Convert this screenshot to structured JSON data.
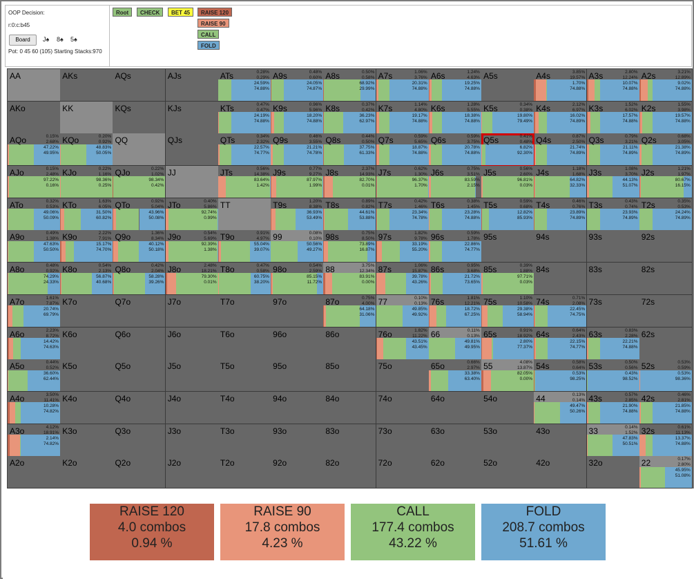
{
  "info": {
    "title": "OOP Decision:",
    "line": "r:0:c:b45",
    "board_button": "Board",
    "cards": [
      "J♠",
      "8♠",
      "5♠"
    ],
    "pot": "Pot: 0 45 60 (105) Starting Stacks:970"
  },
  "nav_buttons": [
    {
      "label": "Root",
      "color": "#93c47d"
    },
    {
      "label": "CHECK",
      "color": "#93c47d"
    },
    {
      "label": "BET 45",
      "color": "#ffff3c"
    },
    {
      "label": "RAISE 120",
      "color": "#c0664f"
    },
    {
      "label": "RAISE 90",
      "color": "#e8957a"
    },
    {
      "label": "CALL",
      "color": "#93c47d"
    },
    {
      "label": "FOLD",
      "color": "#6fa8d0"
    }
  ],
  "colors": {
    "raise120": "#c0664f",
    "raise90": "#e8957a",
    "call": "#93c47d",
    "fold": "#6fa8d0",
    "empty": "#676767",
    "pair_bg": "#8c8c8c",
    "summary_r120": "#c0664f",
    "summary_r90": "#e8957a",
    "summary_call": "#93c47d",
    "summary_fold": "#6fa8d0"
  },
  "selected": "Q5s",
  "matrix": [
    [
      {
        "h": "AA"
      },
      {
        "h": "AKs"
      },
      {
        "h": "AQs"
      },
      {
        "h": "AJs"
      },
      {
        "h": "ATs",
        "s": [
          "0.28%",
          "0.29%",
          "24.59%",
          "74.88%"
        ]
      },
      {
        "h": "A9s",
        "s": [
          "0.48%",
          "0.60%",
          "24.05%",
          "74.87%"
        ]
      },
      {
        "h": "A8s",
        "s": [
          "0.50%",
          "0.58%",
          "68.92%",
          "29.99%"
        ]
      },
      {
        "h": "A7s",
        "s": [
          "1.06%",
          "3.76%",
          "20.31%",
          "74.88%"
        ]
      },
      {
        "h": "A6s",
        "s": [
          "1.24%",
          "4.63%",
          "19.25%",
          "74.88%"
        ]
      },
      {
        "h": "A5s"
      },
      {
        "h": "A4s",
        "s": [
          "3.85%",
          "19.57%",
          "1.70%",
          "74.88%"
        ]
      },
      {
        "h": "A3s",
        "s": [
          "2.80%",
          "12.24%",
          "10.07%",
          "74.88%"
        ]
      },
      {
        "h": "A2s",
        "s": [
          "3.21%",
          "12.89%",
          "9.02%",
          "74.88%"
        ]
      }
    ],
    [
      {
        "h": "AKo"
      },
      {
        "h": "KK"
      },
      {
        "h": "KQs"
      },
      {
        "h": "KJs"
      },
      {
        "h": "KTs",
        "s": [
          "0.47%",
          "0.47%",
          "24.19%",
          "74.88%"
        ]
      },
      {
        "h": "K9s",
        "s": [
          "0.96%",
          "5.96%",
          "18.20%",
          "74.88%"
        ]
      },
      {
        "h": "K8s",
        "s": [
          "0.37%",
          "0.42%",
          "36.23%",
          "62.97%"
        ]
      },
      {
        "h": "K7s",
        "s": [
          "1.14%",
          "4.80%",
          "19.17%",
          "74.88%"
        ]
      },
      {
        "h": "K6s",
        "s": [
          "1.28%",
          "5.55%",
          "18.38%",
          "74.88%"
        ]
      },
      {
        "h": "K5s",
        "s": [
          "0.34%",
          "0.38%",
          "19.80%",
          "79.49%"
        ]
      },
      {
        "h": "K4s",
        "s": [
          "2.12%",
          "6.97%",
          "16.02%",
          "74.89%"
        ]
      },
      {
        "h": "K3s",
        "s": [
          "1.52%",
          "6.02%",
          "17.57%",
          "74.88%"
        ]
      },
      {
        "h": "K2s",
        "s": [
          "1.55%",
          "3.98%",
          "19.57%",
          "74.88%"
        ]
      }
    ],
    [
      {
        "h": "AQo",
        "s": [
          "0.15%",
          "2.68%",
          "47.22%",
          "49.95%"
        ]
      },
      {
        "h": "KQo",
        "s": [
          "0.20%",
          "0.92%",
          "48.83%",
          "50.05%"
        ]
      },
      {
        "h": "QQ"
      },
      {
        "h": "QJs"
      },
      {
        "h": "QTs",
        "s": [
          "0.34%",
          "2.32%",
          "22.57%",
          "74.77%"
        ]
      },
      {
        "h": "Q9s",
        "s": [
          "0.46%",
          "3.55%",
          "21.21%",
          "74.78%"
        ]
      },
      {
        "h": "Q8s",
        "s": [
          "0.44%",
          "0.50%",
          "37.75%",
          "61.33%"
        ]
      },
      {
        "h": "Q7s",
        "s": [
          "0.59%",
          "5.65%",
          "18.87%",
          "74.88%"
        ]
      },
      {
        "h": "Q6s",
        "s": [
          "0.59%",
          "3.75%",
          "20.78%",
          "74.88%"
        ]
      },
      {
        "h": "Q5s",
        "s": [
          "0.41%",
          "0.48%",
          "6.82%",
          "92.30%"
        ]
      },
      {
        "h": "Q4s",
        "s": [
          "0.87%",
          "2.50%",
          "21.74%",
          "74.89%"
        ]
      },
      {
        "h": "Q3s",
        "s": [
          "0.79%",
          "3.21%",
          "21.11%",
          "74.89%"
        ]
      },
      {
        "h": "Q2s",
        "s": [
          "0.68%",
          "3.05%",
          "21.38%",
          "74.89%"
        ]
      }
    ],
    [
      {
        "h": "AJo",
        "s": [
          "0.15%",
          "2.48%",
          "97.22%",
          "0.16%"
        ]
      },
      {
        "h": "KJo",
        "s": [
          "0.22%",
          "1.16%",
          "98.36%",
          "0.25%"
        ]
      },
      {
        "h": "QJo",
        "s": [
          "0.22%",
          "1.02%",
          "98.34%",
          "0.42%"
        ]
      },
      {
        "h": "JJ"
      },
      {
        "h": "JTs",
        "s": [
          "0.56%",
          "14.38%",
          "83.64%",
          "1.42%"
        ]
      },
      {
        "h": "J9s",
        "s": [
          "0.77%",
          "9.27%",
          "87.97%",
          "1.99%"
        ]
      },
      {
        "h": "J8s",
        "s": [
          "2.37%",
          "14.93%",
          "82.70%",
          "0.01%"
        ]
      },
      {
        "h": "J7s",
        "s": [
          "0.62%",
          "1.30%",
          "96.37%",
          "1.70%"
        ]
      },
      {
        "h": "J6s",
        "s": [
          "0.75%",
          "3.51%",
          "83.59%",
          "2.15%"
        ]
      },
      {
        "h": "J5s",
        "s": [
          "0.56%",
          "2.60%",
          "96.81%",
          "0.03%"
        ]
      },
      {
        "h": "J4s",
        "s": [
          "1.18%",
          "1.68%",
          "64.82%",
          "32.33%"
        ]
      },
      {
        "h": "J3s",
        "s": [
          "1.08%",
          "3.70%",
          "44.13%",
          "51.07%"
        ]
      },
      {
        "h": "J2s",
        "s": [
          "1.21%",
          "1.97%",
          "80.67%",
          "16.15%"
        ]
      }
    ],
    [
      {
        "h": "ATo",
        "s": [
          "0.32%",
          "0.53%",
          "49.06%",
          "50.09%"
        ]
      },
      {
        "h": "KTo",
        "s": [
          "1.63%",
          "6.05%",
          "31.50%",
          "60.82%"
        ]
      },
      {
        "h": "QTo",
        "s": [
          "0.92%",
          "5.04%",
          "43.96%",
          "50.08%"
        ]
      },
      {
        "h": "JTo",
        "s": [
          "0.40%",
          "5.86%",
          "92.74%",
          "0.99%"
        ]
      },
      {
        "h": "TT"
      },
      {
        "h": "T9s",
        "s": [
          "1.20%",
          "8.38%",
          "36.93%",
          "53.49%"
        ]
      },
      {
        "h": "T8s",
        "s": [
          "0.89%",
          "0.82%",
          "44.61%",
          "53.88%"
        ]
      },
      {
        "h": "T7s",
        "s": [
          "0.42%",
          "1.46%",
          "23.34%",
          "74.78%"
        ]
      },
      {
        "h": "T6s",
        "s": [
          "0.38%",
          "1.45%",
          "23.28%",
          "74.88%"
        ]
      },
      {
        "h": "T5s",
        "s": [
          "0.59%",
          "0.68%",
          "12.82%",
          "85.93%"
        ]
      },
      {
        "h": "T4s",
        "s": [
          "0.46%",
          "0.76%",
          "23.89%",
          "74.89%"
        ]
      },
      {
        "h": "T3s",
        "s": [
          "0.43%",
          "0.74%",
          "23.93%",
          "74.89%"
        ]
      },
      {
        "h": "T2s",
        "s": [
          "0.35%",
          "0.53%",
          "24.24%",
          "74.89%"
        ]
      }
    ],
    [
      {
        "h": "A9o",
        "s": [
          "0.49%",
          "1.38%",
          "47.63%",
          "50.50%"
        ]
      },
      {
        "h": "K9o",
        "s": [
          "2.22%",
          "7.91%",
          "15.17%",
          "74.70%"
        ]
      },
      {
        "h": "Q9o",
        "s": [
          "1.36%",
          "8.34%",
          "40.12%",
          "50.18%"
        ]
      },
      {
        "h": "J9o",
        "s": [
          "0.54%",
          "5.69%",
          "92.39%",
          "1.38%"
        ]
      },
      {
        "h": "T9o",
        "s": [
          "0.91%",
          "4.97%",
          "55.04%",
          "39.07%"
        ]
      },
      {
        "h": "99",
        "s": [
          "0.08%",
          "0.10%",
          "50.56%",
          "49.27%"
        ]
      },
      {
        "h": "98s",
        "s": [
          "0.75%",
          "8.50%",
          "73.89%",
          "16.87%"
        ]
      },
      {
        "h": "97s",
        "s": [
          "1.82%",
          "9.78%",
          "33.19%",
          "55.20%"
        ]
      },
      {
        "h": "96s",
        "s": [
          "0.59%",
          "1.78%",
          "22.86%",
          "74.77%"
        ]
      },
      {
        "h": "95s"
      },
      {
        "h": "94s"
      },
      {
        "h": "93s"
      },
      {
        "h": "92s"
      }
    ],
    [
      {
        "h": "A8o",
        "s": [
          "0.48%",
          "0.92%",
          "74.29%",
          "24.33%"
        ]
      },
      {
        "h": "K8o",
        "s": [
          "0.54%",
          "2.13%",
          "56.87%",
          "40.68%"
        ]
      },
      {
        "h": "Q8o",
        "s": [
          "0.42%",
          "2.04%",
          "58.28%",
          "39.26%"
        ]
      },
      {
        "h": "J8o",
        "s": [
          "2.48%",
          "18.21%",
          "79.30%",
          "0.01%"
        ]
      },
      {
        "h": "T8o",
        "s": [
          "0.47%",
          "0.58%",
          "60.75%",
          "38.20%"
        ]
      },
      {
        "h": "98o",
        "s": [
          "0.54%",
          "2.59%",
          "85.15%",
          "11.72%"
        ]
      },
      {
        "h": "88",
        "s": [
          "3.75%",
          "12.34%",
          "83.91%",
          "0.00%"
        ]
      },
      {
        "h": "87s",
        "s": [
          "1.06%",
          "15.87%",
          "39.78%",
          "43.26%"
        ]
      },
      {
        "h": "86s",
        "s": [
          "0.95%",
          "3.68%",
          "21.72%",
          "73.65%"
        ]
      },
      {
        "h": "85s",
        "s": [
          "0.39%",
          "1.88%",
          "97.71%",
          "0.03%"
        ]
      },
      {
        "h": "84s"
      },
      {
        "h": "83s"
      },
      {
        "h": "82s"
      }
    ],
    [
      {
        "h": "A7o",
        "s": [
          "1.61%",
          "7.87%",
          "20.74%",
          "69.79%"
        ]
      },
      {
        "h": "K7o"
      },
      {
        "h": "Q7o"
      },
      {
        "h": "J7o"
      },
      {
        "h": "T7o"
      },
      {
        "h": "97o"
      },
      {
        "h": "87o",
        "s": [
          "0.75%",
          "4.00%",
          "64.18%",
          "31.06%"
        ]
      },
      {
        "h": "77",
        "s": [
          "0.10%",
          "0.13%",
          "49.85%",
          "49.92%"
        ]
      },
      {
        "h": "76s",
        "s": [
          "1.81%",
          "12.21%",
          "18.72%",
          "67.25%"
        ]
      },
      {
        "h": "75s",
        "s": [
          "1.10%",
          "10.58%",
          "29.38%",
          "58.94%"
        ]
      },
      {
        "h": "74s",
        "s": [
          "0.71%",
          "2.08%",
          "22.45%",
          "74.75%"
        ]
      },
      {
        "h": "73s"
      },
      {
        "h": "72s"
      }
    ],
    [
      {
        "h": "A6o",
        "s": [
          "2.23%",
          "8.72%",
          "14.42%",
          "74.63%"
        ]
      },
      {
        "h": "K6o"
      },
      {
        "h": "Q6o"
      },
      {
        "h": "J6o"
      },
      {
        "h": "T6o"
      },
      {
        "h": "96o"
      },
      {
        "h": "86o"
      },
      {
        "h": "76o",
        "s": [
          "1.82%",
          "11.22%",
          "43.51%",
          "43.45%"
        ]
      },
      {
        "h": "66",
        "s": [
          "0.11%",
          "0.13%",
          "49.81%",
          "49.95%"
        ]
      },
      {
        "h": "65s",
        "s": [
          "0.91%",
          "18.92%",
          "2.80%",
          "77.37%"
        ]
      },
      {
        "h": "64s",
        "s": [
          "0.64%",
          "2.43%",
          "22.15%",
          "74.77%"
        ]
      },
      {
        "h": "63s",
        "s": [
          "0.83%",
          "2.28%",
          "22.21%",
          "74.88%"
        ]
      },
      {
        "h": "62s"
      }
    ],
    [
      {
        "h": "A5o",
        "s": [
          "0.44%",
          "0.52%",
          "36.60%",
          "62.44%"
        ]
      },
      {
        "h": "K5o"
      },
      {
        "h": "Q5o"
      },
      {
        "h": "J5o"
      },
      {
        "h": "T5o"
      },
      {
        "h": "95o"
      },
      {
        "h": "85o"
      },
      {
        "h": "75o"
      },
      {
        "h": "65o",
        "s": [
          "0.66%",
          "2.97%",
          "33.38%",
          "63.40%"
        ]
      },
      {
        "h": "55",
        "s": [
          "4.08%",
          "13.87%",
          "82.05%",
          "0.00%"
        ]
      },
      {
        "h": "54s",
        "s": [
          "0.58%",
          "0.64%",
          "0.53%",
          "98.25%"
        ]
      },
      {
        "h": "53s",
        "s": [
          "0.50%",
          "0.56%",
          "0.43%",
          "98.52%"
        ]
      },
      {
        "h": "52s",
        "s": [
          "0.53%",
          "0.59%",
          "0.53%",
          "98.36%"
        ]
      }
    ],
    [
      {
        "h": "A4o",
        "s": [
          "3.50%",
          "11.41%",
          "10.28%",
          "74.82%"
        ]
      },
      {
        "h": "K4o"
      },
      {
        "h": "Q4o"
      },
      {
        "h": "J4o"
      },
      {
        "h": "T4o"
      },
      {
        "h": "94o"
      },
      {
        "h": "84o"
      },
      {
        "h": "74o"
      },
      {
        "h": "64o"
      },
      {
        "h": "54o"
      },
      {
        "h": "44",
        "s": [
          "0.13%",
          "0.14%",
          "49.47%",
          "50.26%"
        ]
      },
      {
        "h": "43s",
        "s": [
          "0.57%",
          "2.85%",
          "21.90%",
          "74.88%"
        ]
      },
      {
        "h": "42s",
        "s": [
          "0.46%",
          "2.81%",
          "21.85%",
          "74.88%"
        ]
      }
    ],
    [
      {
        "h": "A3o",
        "s": [
          "4.12%",
          "18.91%",
          "2.14%",
          "74.82%"
        ]
      },
      {
        "h": "K3o"
      },
      {
        "h": "Q3o"
      },
      {
        "h": "J3o"
      },
      {
        "h": "T3o"
      },
      {
        "h": "93o"
      },
      {
        "h": "83o"
      },
      {
        "h": "73o"
      },
      {
        "h": "63o"
      },
      {
        "h": "53o"
      },
      {
        "h": "43o"
      },
      {
        "h": "33",
        "s": [
          "0.14%",
          "1.52%",
          "47.83%",
          "50.51%"
        ]
      },
      {
        "h": "32s",
        "s": [
          "0.61%",
          "11.13%",
          "13.37%",
          "74.88%"
        ]
      }
    ],
    [
      {
        "h": "A2o"
      },
      {
        "h": "K2o"
      },
      {
        "h": "Q2o"
      },
      {
        "h": "J2o"
      },
      {
        "h": "T2o"
      },
      {
        "h": "92o"
      },
      {
        "h": "82o"
      },
      {
        "h": "72o"
      },
      {
        "h": "62o"
      },
      {
        "h": "52o"
      },
      {
        "h": "42o"
      },
      {
        "h": "32o"
      },
      {
        "h": "22",
        "s": [
          "0.17%",
          "2.80%",
          "45.95%",
          "51.08%"
        ]
      }
    ]
  ],
  "summary": [
    {
      "title": "RAISE 120",
      "combos": "4.0 combos",
      "pct": "0.94 %"
    },
    {
      "title": "RAISE 90",
      "combos": "17.8 combos",
      "pct": "4.23 %"
    },
    {
      "title": "CALL",
      "combos": "177.4 combos",
      "pct": "43.22 %"
    },
    {
      "title": "FOLD",
      "combos": "208.7 combos",
      "pct": "51.61 %"
    }
  ]
}
